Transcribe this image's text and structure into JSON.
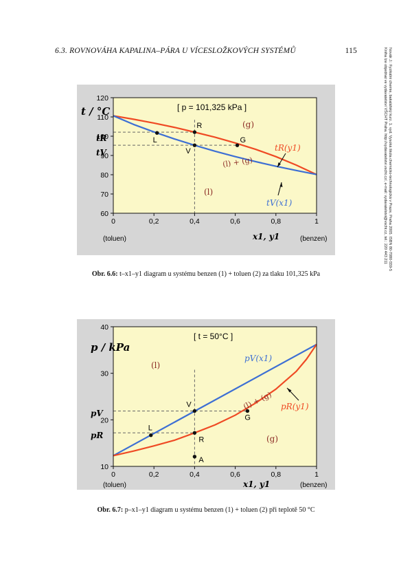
{
  "header": {
    "title": "6.3.  ROVNOVÁHA KAPALINA–PÁRA U VÍCESLOŽKOVÝCH SYSTÉMŮ",
    "page": "115"
  },
  "sidenote": {
    "line1": "Novák J.: Fyzikální chemie, bakalářský kurz. 1. vyd. Vysoká škola chemicko-technologická v Praze, Praha 2005. ISBN 80-7080-559-5",
    "line2": "Kniha lze objednat ve vydavatelství VŠCHT Praha. http://vydavatelstvi.vscht.cz/, e-mail: vydavatelstvi@vscht.cz, tel.: 220 443 211"
  },
  "figures": [
    {
      "caption_label": "Obr. 6.6:",
      "caption_text": " t–x1–y1 diagram u systému benzen (1) + toluen (2) za tlaku 101,325 kPa",
      "colors": {
        "background": "#fbf8c8",
        "frame": "#d6d6d6",
        "line_upper": "#ef4a24",
        "line_lower": "#3d6fd4",
        "label": "#8e2f28"
      },
      "chart_data": {
        "type": "line",
        "ylabel": "t / °C",
        "xlabel": "x1, y1",
        "x_end_labels": [
          "(toluen)",
          "(benzen)"
        ],
        "xlim": [
          0,
          1
        ],
        "ylim": [
          60,
          120
        ],
        "x_ticks": [
          "0",
          "0,2",
          "0,4",
          "0,6",
          "0,8",
          "1"
        ],
        "y_ticks": [
          "60",
          "70",
          "80",
          "90",
          "100",
          "110",
          "120"
        ],
        "box_label": "[ p = 101,325 kPa ]",
        "series": [
          {
            "name": "tR(y1)",
            "x": [
              0,
              0.1,
              0.2,
              0.3,
              0.4,
              0.5,
              0.6,
              0.7,
              0.8,
              0.9,
              1.0
            ],
            "y": [
              110.6,
              108.8,
              106.8,
              104.6,
              102.1,
              99.5,
              96.5,
              93.2,
              89.4,
              85.0,
              80.1
            ]
          },
          {
            "name": "tV(x1)",
            "x": [
              0,
              0.1,
              0.2,
              0.3,
              0.4,
              0.5,
              0.6,
              0.7,
              0.8,
              0.9,
              1.0
            ],
            "y": [
              110.6,
              106.1,
              102.2,
              98.6,
              95.3,
              92.2,
              89.4,
              86.8,
              84.4,
              82.2,
              80.1
            ]
          }
        ],
        "points": [
          {
            "label": "R",
            "x": 0.4,
            "y": 102.1
          },
          {
            "label": "V",
            "x": 0.4,
            "y": 95.3
          },
          {
            "label": "L",
            "x": 0.215,
            "y": 101.7
          },
          {
            "label": "G",
            "x": 0.61,
            "y": 95.3
          }
        ],
        "tick_side_labels": [
          "tR",
          "tV"
        ],
        "region_labels": [
          "(g)",
          "(l)",
          "(l) + (g)"
        ]
      }
    },
    {
      "caption_label": "Obr. 6.7:",
      "caption_text": " p–x1–y1 diagram u systému benzen (1) + toluen (2) při teplotě 50 °C",
      "colors": {
        "background": "#fbf8c8",
        "frame": "#d6d6d6",
        "line_upper": "#3d6fd4",
        "line_lower": "#ef4a24",
        "label": "#8e2f28"
      },
      "chart_data": {
        "type": "line",
        "ylabel": "p / kPa",
        "xlabel": "x1, y1",
        "x_end_labels": [
          "(toluen)",
          "(benzen)"
        ],
        "xlim": [
          0,
          1
        ],
        "ylim": [
          10,
          40
        ],
        "x_ticks": [
          "0",
          "0,2",
          "0,4",
          "0,6",
          "0,8",
          "1"
        ],
        "y_ticks": [
          "10",
          "20",
          "30",
          "40"
        ],
        "box_label": "[ t = 50°C ]",
        "series": [
          {
            "name": "pV(x1)",
            "x": [
              0,
              1
            ],
            "y": [
              12.3,
              36.2
            ]
          },
          {
            "name": "pR(y1)",
            "x": [
              0,
              0.1,
              0.2,
              0.3,
              0.4,
              0.5,
              0.6,
              0.7,
              0.8,
              0.9,
              0.95,
              1.0
            ],
            "y": [
              12.3,
              13.3,
              14.4,
              15.6,
              17.2,
              18.9,
              21.0,
              23.6,
              26.6,
              30.4,
              33.0,
              36.2
            ]
          }
        ],
        "points": [
          {
            "label": "V",
            "x": 0.4,
            "y": 21.9
          },
          {
            "label": "R",
            "x": 0.4,
            "y": 17.2
          },
          {
            "label": "L",
            "x": 0.185,
            "y": 16.7
          },
          {
            "label": "G",
            "x": 0.66,
            "y": 21.9
          },
          {
            "label": "A",
            "x": 0.4,
            "y": 12.1
          }
        ],
        "tick_side_labels": [
          "pV",
          "pR"
        ],
        "region_labels": [
          "(l)",
          "(g)",
          "(l) + (g)"
        ]
      }
    }
  ]
}
